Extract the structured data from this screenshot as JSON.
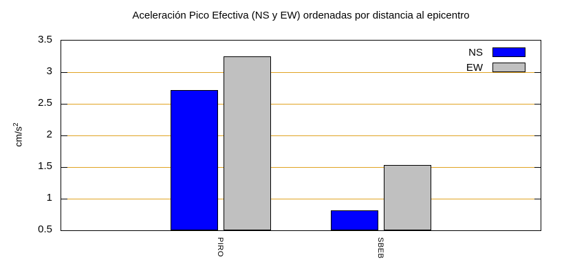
{
  "chart_data": {
    "type": "bar",
    "title": "Aceleración Pico Efectiva (NS y EW) ordenadas por distancia al epicentro",
    "ylabel": "cm/s",
    "ylabel_exponent": "2",
    "xlabel": "",
    "categories": [
      "PIRO",
      "SBEB"
    ],
    "series": [
      {
        "name": "NS",
        "color": "#0000ff",
        "values": [
          2.72,
          0.82
        ]
      },
      {
        "name": "EW",
        "color": "#c0c0c0",
        "values": [
          3.25,
          1.53
        ]
      }
    ],
    "ylim": [
      0.5,
      3.5
    ],
    "yticks": [
      "0.5",
      "1",
      "1.5",
      "2",
      "2.5",
      "3",
      "3.5"
    ],
    "grid": "on",
    "grid_color": "#e0a321",
    "legend_position": "top-right",
    "bar_border_color": "#000000",
    "axis_color": "#000000"
  }
}
